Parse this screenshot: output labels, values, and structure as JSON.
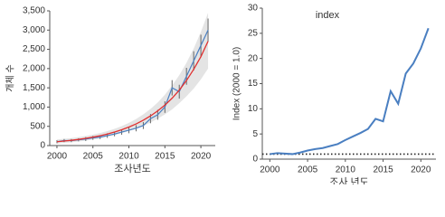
{
  "chart_data": [
    {
      "type": "line",
      "xlabel": "조사년도",
      "ylabel": "개체 수",
      "x": [
        2000,
        2001,
        2002,
        2003,
        2004,
        2005,
        2006,
        2007,
        2008,
        2009,
        2010,
        2011,
        2012,
        2013,
        2014,
        2015,
        2016,
        2017,
        2018,
        2019,
        2020,
        2021
      ],
      "xlim": [
        1999,
        2022
      ],
      "xticks": [
        2000,
        2005,
        2010,
        2015,
        2020
      ],
      "ylim": [
        0,
        3500
      ],
      "yticks": [
        0,
        500,
        {
          "value": 1000,
          "label": "1,000"
        },
        {
          "value": 1500,
          "label": "1,500"
        },
        {
          "value": 2000,
          "label": "2,000"
        },
        {
          "value": 2500,
          "label": "2,500"
        },
        {
          "value": 3000,
          "label": "3,000"
        },
        {
          "value": 3500,
          "label": "3,500"
        }
      ],
      "band": {
        "color": "#d9d9d9",
        "upper": [
          160,
          175,
          195,
          220,
          250,
          285,
          325,
          375,
          435,
          505,
          590,
          690,
          810,
          950,
          1120,
          1320,
          1560,
          1830,
          2150,
          2520,
          2950,
          3450
        ],
        "lower": [
          50,
          70,
          85,
          105,
          125,
          155,
          185,
          225,
          270,
          320,
          375,
          440,
          510,
          600,
          700,
          810,
          940,
          1100,
          1280,
          1480,
          1720,
          2000
        ]
      },
      "fit": {
        "color": "#e03030",
        "values": [
          100,
          117,
          137,
          160,
          187,
          219,
          256,
          300,
          351,
          411,
          481,
          562,
          658,
          770,
          901,
          1050,
          1230,
          1440,
          1690,
          1980,
          2310,
          2710
        ]
      },
      "series": [
        {
          "color": "#4a7fc1",
          "values": [
            100,
            130,
            130,
            150,
            170,
            200,
            220,
            260,
            300,
            350,
            400,
            450,
            520,
            700,
            800,
            1000,
            1500,
            1400,
            1800,
            2200,
            2600,
            3000
          ],
          "errors": [
            40,
            40,
            40,
            40,
            50,
            50,
            50,
            60,
            60,
            70,
            80,
            80,
            90,
            120,
            130,
            150,
            200,
            180,
            220,
            250,
            280,
            300
          ]
        }
      ]
    },
    {
      "type": "line",
      "title": "index",
      "xlabel": "조사 년도",
      "ylabel": "Index (2000 = 1.0)",
      "x": [
        2000,
        2001,
        2002,
        2003,
        2004,
        2005,
        2006,
        2007,
        2008,
        2009,
        2010,
        2011,
        2012,
        2013,
        2014,
        2015,
        2016,
        2017,
        2018,
        2019,
        2020,
        2021
      ],
      "xlim": [
        1999,
        2022
      ],
      "xticks": [
        2000,
        2005,
        2010,
        2015,
        2020
      ],
      "ylim": [
        0,
        30
      ],
      "yticks": [
        0,
        5,
        10,
        15,
        20,
        25,
        30
      ],
      "reference": 1,
      "series": [
        {
          "color": "#4a7fc1",
          "values": [
            1,
            1.2,
            1.1,
            1.0,
            1.3,
            1.7,
            2.0,
            2.2,
            2.6,
            3.0,
            3.8,
            4.5,
            5.2,
            6.0,
            8.0,
            7.5,
            13.5,
            11,
            17,
            19,
            22,
            26
          ]
        }
      ]
    }
  ]
}
